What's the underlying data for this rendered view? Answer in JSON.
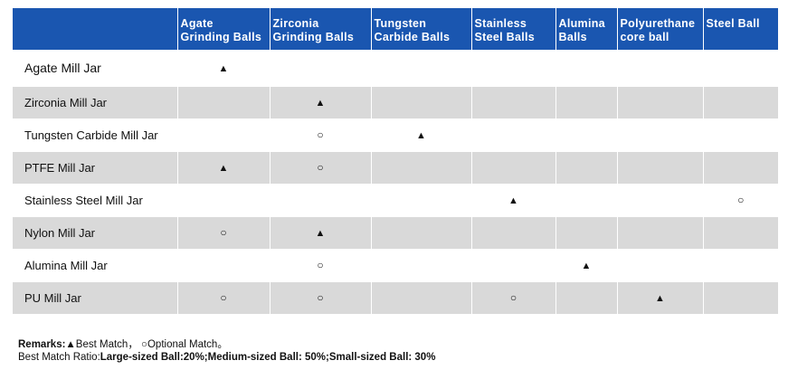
{
  "header": {
    "corner": "",
    "columns": [
      "Agate\nGrinding Balls",
      "Zirconia\nGrinding Balls",
      "Tungsten\nCarbide Balls",
      "Stainless\nSteel Balls",
      "Alumina\nBalls",
      "Polyurethane\ncore ball",
      "Steel Ball"
    ]
  },
  "symbols": {
    "best": "▲",
    "optional": "○"
  },
  "rows": [
    {
      "label": "Agate Mill Jar",
      "cells": [
        "▲",
        "",
        "",
        "",
        "",
        "",
        ""
      ]
    },
    {
      "label": "Zirconia Mill Jar",
      "cells": [
        "",
        "▲",
        "",
        "",
        "",
        "",
        ""
      ]
    },
    {
      "label": "Tungsten Carbide Mill Jar",
      "cells": [
        "",
        "○",
        "▲",
        "",
        "",
        "",
        ""
      ]
    },
    {
      "label": "PTFE Mill Jar",
      "cells": [
        "▲",
        "○",
        "",
        "",
        "",
        "",
        ""
      ]
    },
    {
      "label": "Stainless Steel Mill Jar",
      "cells": [
        "",
        "",
        "",
        "▲",
        "",
        "",
        "○"
      ]
    },
    {
      "label": "Nylon Mill Jar",
      "cells": [
        "○",
        "▲",
        "",
        "",
        "",
        "",
        ""
      ]
    },
    {
      "label": "Alumina Mill Jar",
      "cells": [
        "",
        "○",
        "",
        "",
        "▲",
        "",
        ""
      ]
    },
    {
      "label": "PU  Mill Jar",
      "cells": [
        "○",
        "○",
        "",
        "○",
        "",
        "▲",
        ""
      ]
    }
  ],
  "remarks": {
    "prefix": "Remarks:",
    "best_label": "▲Best Match，",
    "optional_label": "○Optional Match。",
    "ratio_prefix": "Best Match Ratio:",
    "ratio_values": "Large-sized Ball:20%;Medium-sized Ball: 50%;Small-sized Ball: 30%"
  },
  "colors": {
    "header_bg": "#1a56b0",
    "shaded_row": "#d9d9d9"
  }
}
